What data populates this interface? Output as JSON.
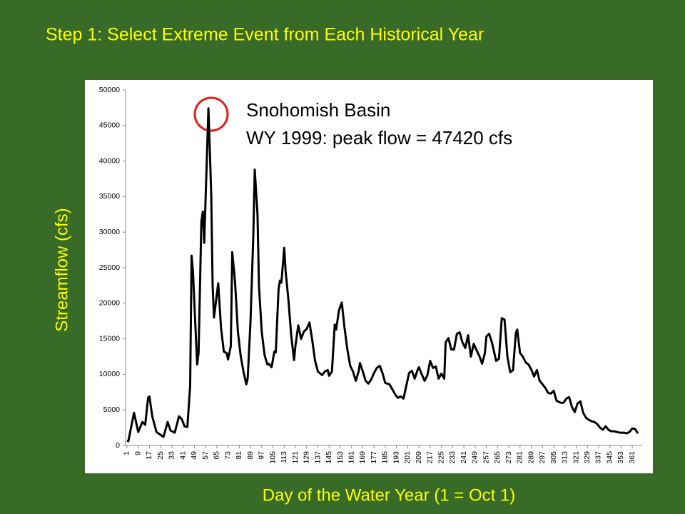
{
  "chart_data": {
    "type": "line",
    "title": "Step 1:  Select Extreme Event from Each Historical Year",
    "annotation": [
      "Snohomish Basin",
      "WY 1999:  peak flow = 47420 cfs"
    ],
    "xlabel": "Day of the Water Year (1 = Oct 1)",
    "ylabel": "Streamflow (cfs)",
    "color": "#000000",
    "x": [
      1,
      2,
      6,
      9,
      12,
      14,
      16,
      17,
      19,
      22,
      27,
      30,
      32,
      35,
      38,
      40,
      42,
      44,
      46,
      47,
      48,
      51,
      52,
      54,
      55,
      56,
      59,
      61,
      62,
      63,
      66,
      68,
      70,
      72,
      73,
      75,
      76,
      78,
      80,
      82,
      84,
      86,
      87,
      89,
      91,
      92,
      94,
      95,
      97,
      99,
      101,
      102,
      104,
      106,
      107,
      109,
      110,
      111,
      113,
      114,
      116,
      118,
      120,
      121,
      123,
      125,
      127,
      129,
      131,
      133,
      135,
      137,
      140,
      142,
      144,
      145,
      147,
      149,
      150,
      152,
      154,
      156,
      158,
      160,
      162,
      164,
      166,
      167,
      169,
      171,
      173,
      175,
      177,
      179,
      181,
      183,
      185,
      188,
      190,
      192,
      194,
      196,
      198,
      200,
      202,
      204,
      206,
      208,
      209,
      211,
      213,
      215,
      217,
      219,
      221,
      223,
      225,
      227,
      228,
      230,
      232,
      234,
      236,
      238,
      240,
      242,
      244,
      246,
      248,
      250,
      252,
      254,
      256,
      257,
      259,
      261,
      264,
      266,
      268,
      270,
      272,
      274,
      276,
      278,
      279,
      281,
      283,
      285,
      287,
      289,
      291,
      293,
      295,
      297,
      299,
      301,
      303,
      305,
      307,
      310,
      312,
      314,
      316,
      318,
      320,
      322,
      324,
      326,
      328,
      330,
      332,
      334,
      336,
      338,
      340,
      342,
      344,
      346,
      348,
      350,
      352,
      355,
      357,
      359,
      361,
      363,
      365
    ],
    "values": [
      700,
      600,
      4600,
      1900,
      3300,
      2900,
      6700,
      6900,
      4100,
      1900,
      1200,
      3300,
      2100,
      1800,
      4100,
      3700,
      2700,
      2600,
      8400,
      26700,
      24500,
      11400,
      13000,
      31500,
      32900,
      28500,
      47420,
      35500,
      22500,
      18000,
      22800,
      16500,
      13200,
      13000,
      12100,
      14000,
      27200,
      23000,
      16000,
      12600,
      10400,
      8600,
      9400,
      17500,
      29500,
      38800,
      32500,
      22500,
      16000,
      12700,
      11400,
      11500,
      11000,
      13200,
      13100,
      22000,
      23200,
      22900,
      27800,
      24500,
      20500,
      15500,
      12000,
      14000,
      16900,
      15000,
      16000,
      16400,
      17300,
      14800,
      11900,
      10400,
      9900,
      10400,
      10600,
      9800,
      10400,
      17000,
      16300,
      19000,
      20100,
      16500,
      13500,
      11200,
      10400,
      9100,
      10400,
      11600,
      10400,
      9100,
      8700,
      9300,
      10200,
      10900,
      11200,
      10200,
      8800,
      8600,
      7900,
      7200,
      6700,
      6900,
      6600,
      8400,
      10200,
      10500,
      9400,
      10600,
      11000,
      10000,
      9100,
      9900,
      11900,
      10900,
      11100,
      9400,
      10100,
      9400,
      14500,
      15100,
      13500,
      13500,
      15700,
      15900,
      14500,
      13700,
      15500,
      12500,
      14300,
      13400,
      12600,
      11500,
      13000,
      15300,
      15700,
      14500,
      11900,
      12200,
      17900,
      17700,
      12500,
      10300,
      10600,
      15800,
      16300,
      13000,
      12500,
      11700,
      11400,
      10700,
      9700,
      10600,
      9100,
      8600,
      8100,
      7400,
      7300,
      7700,
      6300,
      6000,
      6000,
      6600,
      6800,
      5400,
      4700,
      5900,
      6200,
      4600,
      3900,
      3600,
      3400,
      3300,
      3000,
      2500,
      2200,
      2700,
      2200,
      2000,
      2000,
      1900,
      1800,
      1800,
      1700,
      1900,
      2400,
      2300,
      1700
    ],
    "xlim": [
      0,
      366
    ],
    "xticks": [
      1,
      9,
      17,
      25,
      33,
      41,
      49,
      57,
      65,
      73,
      81,
      89,
      97,
      105,
      113,
      121,
      129,
      137,
      145,
      153,
      161,
      169,
      177,
      185,
      193,
      201,
      209,
      217,
      225,
      233,
      241,
      249,
      257,
      265,
      273,
      281,
      289,
      297,
      305,
      313,
      321,
      329,
      337,
      345,
      353,
      361
    ],
    "ylim": [
      0,
      50000
    ],
    "yticks": [
      0,
      5000,
      10000,
      15000,
      20000,
      25000,
      30000,
      35000,
      40000,
      45000,
      50000
    ]
  }
}
